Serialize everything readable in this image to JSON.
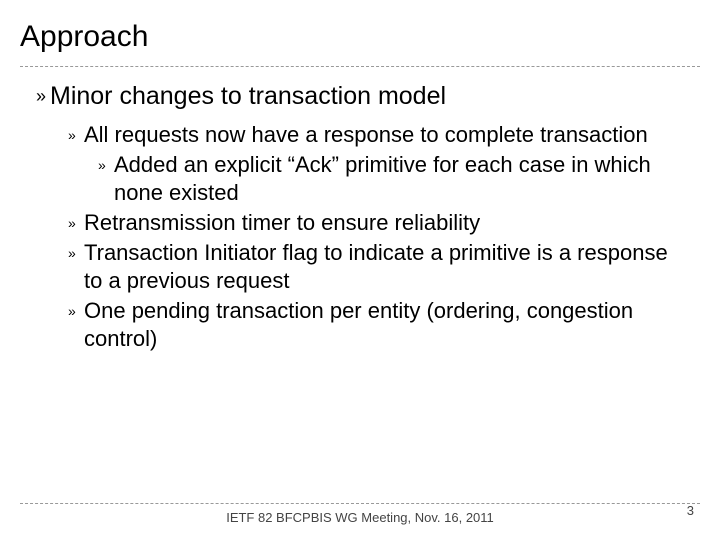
{
  "slide": {
    "title": "Approach",
    "heading": "Minor changes to transaction model",
    "bullets": [
      {
        "text": "All requests now have a response to complete transaction",
        "children": [
          {
            "text": "Added an explicit “Ack” primitive for each case in which none existed"
          }
        ]
      },
      {
        "text": "Retransmission timer to ensure reliability"
      },
      {
        "text": "Transaction Initiator flag to indicate a primitive is a response to a previous request"
      },
      {
        "text": "One pending transaction per entity (ordering, congestion control)"
      }
    ],
    "footer": "IETF 82 BFCPBIS WG Meeting, Nov. 16, 2011",
    "page_number": "3"
  },
  "style": {
    "bullet_glyph": "»",
    "title_fontsize": 30,
    "heading_fontsize": 25,
    "body_fontsize": 22,
    "footer_fontsize": 13,
    "text_color": "#000000",
    "footer_color": "#444444",
    "divider_color": "#999999",
    "background_color": "#ffffff"
  }
}
